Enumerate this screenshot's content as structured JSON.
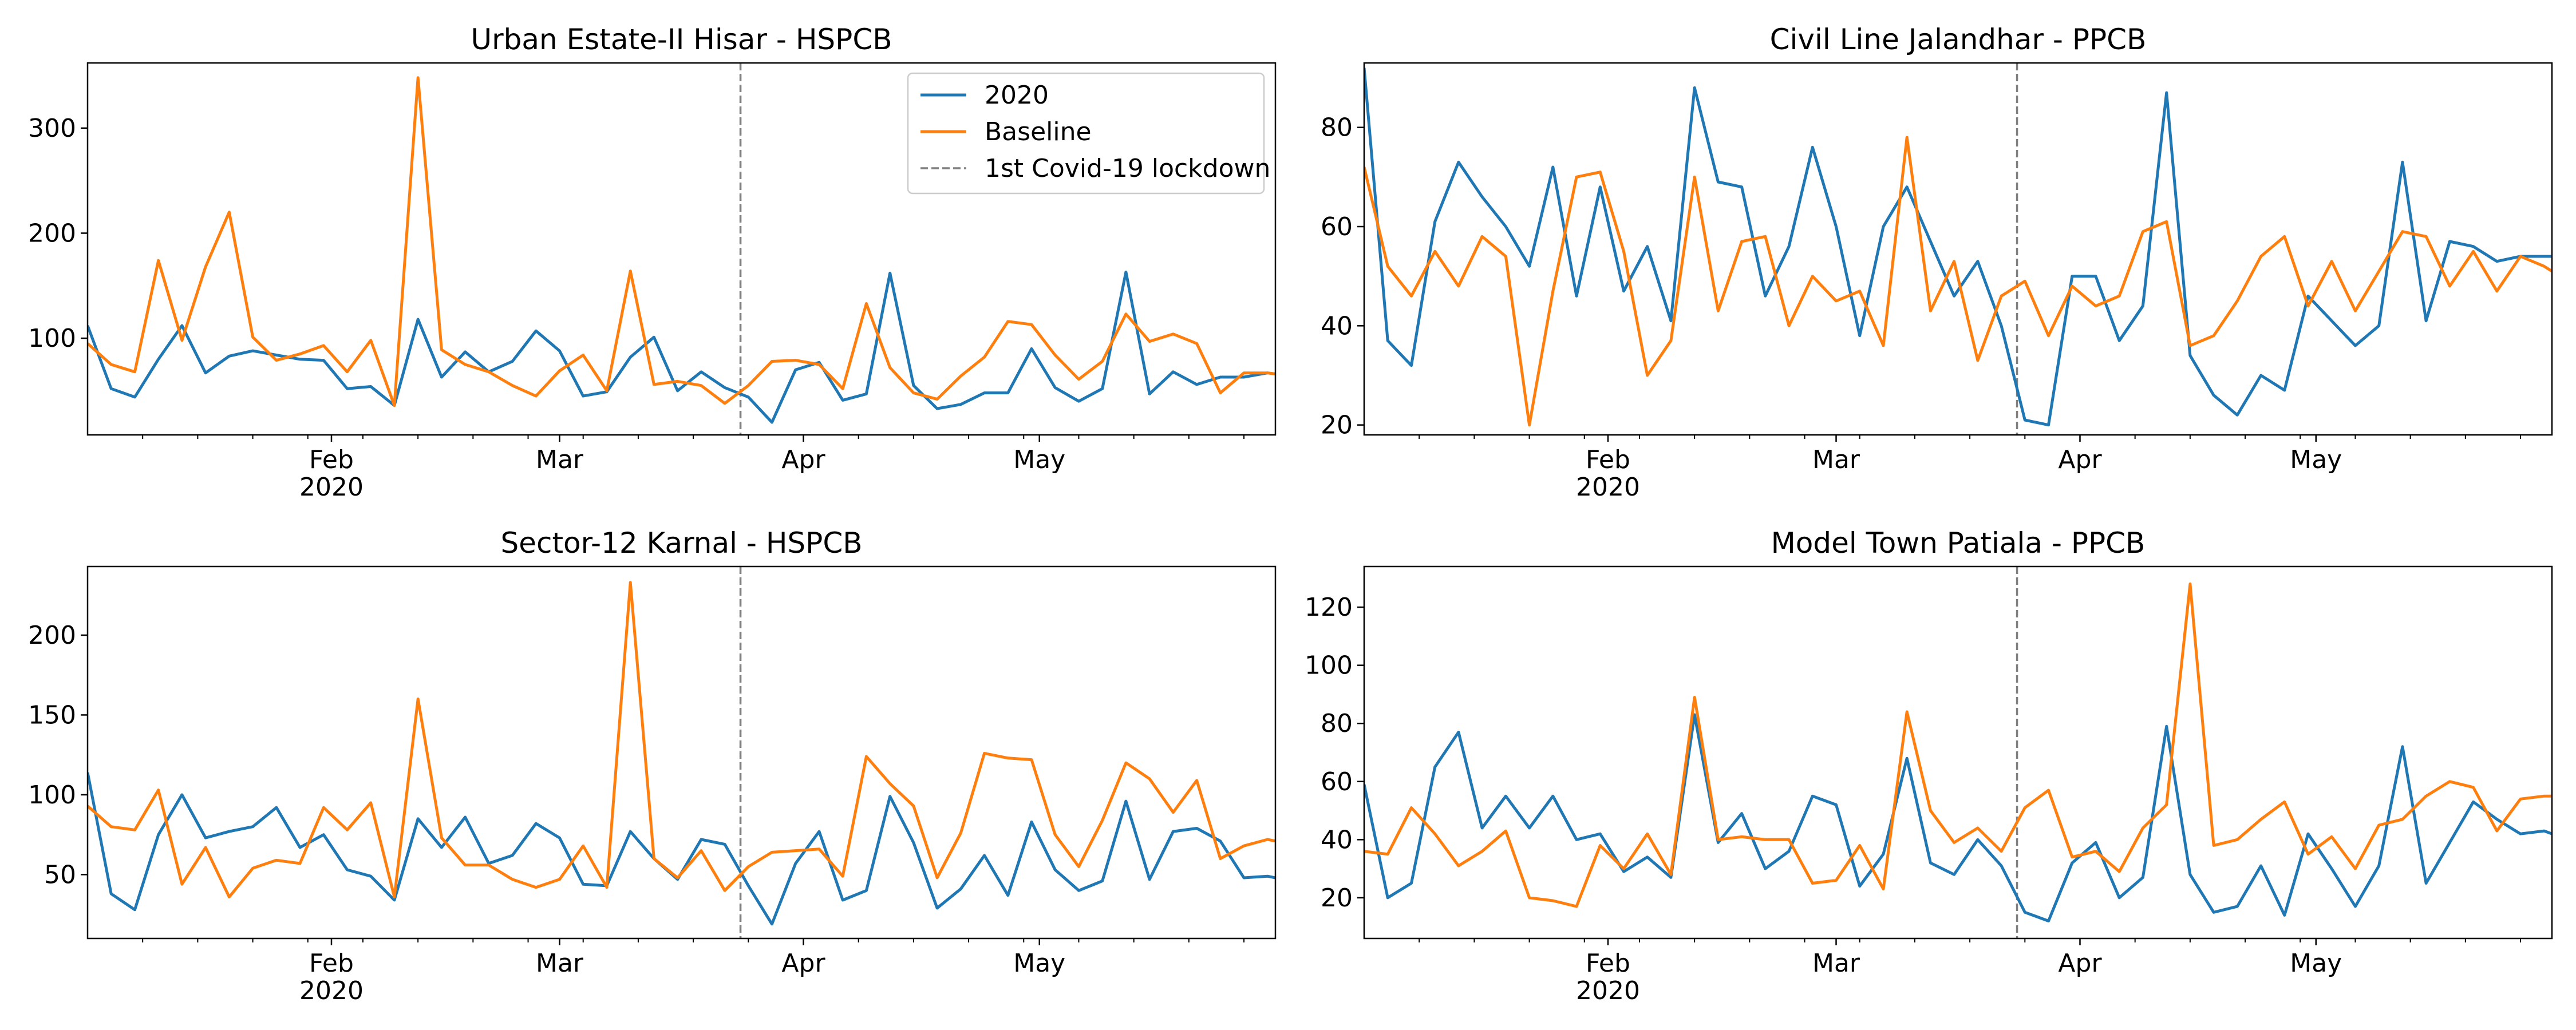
{
  "figure": {
    "background": "#ffffff"
  },
  "styles": {
    "line_2020_color": "#1f77b4",
    "line_baseline_color": "#ff7f0e",
    "lockdown_color": "#808080"
  },
  "lockdown": {
    "date": "2020-03-24",
    "label": "1st Covid-19 lockdown"
  },
  "legend": {
    "entries": [
      {
        "label": "2020",
        "key": "line_2020_color",
        "dashed": false
      },
      {
        "label": "Baseline",
        "key": "line_baseline_color",
        "dashed": false
      },
      {
        "label": "1st Covid-19 lockdown",
        "key": "lockdown_color",
        "dashed": true
      }
    ],
    "placement": "upper-right of first panel"
  },
  "x_axis": {
    "range": [
      "2020-01-01",
      "2020-05-31"
    ],
    "major_ticks": [
      {
        "date": "2020-02-01",
        "label": "Feb",
        "sublabel": "2020"
      },
      {
        "date": "2020-03-01",
        "label": "Mar",
        "sublabel": ""
      },
      {
        "date": "2020-04-01",
        "label": "Apr",
        "sublabel": ""
      },
      {
        "date": "2020-05-01",
        "label": "May",
        "sublabel": ""
      }
    ],
    "minor_tick_dates": [
      "2020-01-08",
      "2020-01-15",
      "2020-01-22",
      "2020-01-29",
      "2020-02-05",
      "2020-02-12",
      "2020-02-19",
      "2020-02-26",
      "2020-03-04",
      "2020-03-11",
      "2020-03-18",
      "2020-03-25",
      "2020-04-08",
      "2020-04-15",
      "2020-04-22",
      "2020-04-29",
      "2020-05-06",
      "2020-05-13",
      "2020-05-20",
      "2020-05-27"
    ]
  },
  "chart_data": [
    {
      "type": "line",
      "title": "Urban Estate-II  Hisar - HSPCB",
      "ylim": [
        8,
        362
      ],
      "yticks": [
        100,
        200,
        300
      ],
      "xlabel": "",
      "ylabel": "",
      "grid": false,
      "x": [
        "2020-01-01",
        "2020-01-04",
        "2020-01-07",
        "2020-01-10",
        "2020-01-13",
        "2020-01-16",
        "2020-01-19",
        "2020-01-22",
        "2020-01-25",
        "2020-01-28",
        "2020-01-31",
        "2020-02-03",
        "2020-02-06",
        "2020-02-09",
        "2020-02-12",
        "2020-02-15",
        "2020-02-18",
        "2020-02-21",
        "2020-02-24",
        "2020-02-27",
        "2020-03-01",
        "2020-03-04",
        "2020-03-07",
        "2020-03-10",
        "2020-03-13",
        "2020-03-16",
        "2020-03-19",
        "2020-03-22",
        "2020-03-25",
        "2020-03-28",
        "2020-03-31",
        "2020-04-03",
        "2020-04-06",
        "2020-04-09",
        "2020-04-12",
        "2020-04-15",
        "2020-04-18",
        "2020-04-21",
        "2020-04-24",
        "2020-04-27",
        "2020-04-30",
        "2020-05-03",
        "2020-05-06",
        "2020-05-09",
        "2020-05-12",
        "2020-05-15",
        "2020-05-18",
        "2020-05-21",
        "2020-05-24",
        "2020-05-27",
        "2020-05-30",
        "2020-05-31"
      ],
      "series": [
        {
          "name": "2020",
          "color_key": "line_2020_color",
          "values": [
            112,
            52,
            44,
            80,
            112,
            67,
            83,
            88,
            84,
            80,
            79,
            52,
            54,
            36,
            118,
            63,
            87,
            68,
            78,
            107,
            88,
            45,
            49,
            82,
            101,
            50,
            68,
            53,
            44,
            20,
            70,
            77,
            41,
            47,
            162,
            55,
            33,
            37,
            48,
            48,
            90,
            53,
            40,
            52,
            163,
            47,
            68,
            56,
            63,
            63,
            67,
            66
          ]
        },
        {
          "name": "Baseline",
          "color_key": "line_baseline_color",
          "values": [
            95,
            75,
            68,
            174,
            98,
            168,
            220,
            101,
            79,
            85,
            93,
            68,
            98,
            36,
            348,
            89,
            75,
            68,
            55,
            45,
            69,
            84,
            50,
            164,
            56,
            59,
            55,
            38,
            55,
            78,
            79,
            75,
            52,
            133,
            72,
            48,
            42,
            64,
            82,
            116,
            113,
            84,
            61,
            78,
            123,
            97,
            104,
            95,
            48,
            67,
            67,
            66
          ]
        }
      ]
    },
    {
      "type": "line",
      "title": "Civil Line  Jalandhar - PPCB",
      "ylim": [
        18,
        93
      ],
      "yticks": [
        20,
        40,
        60,
        80
      ],
      "xlabel": "",
      "ylabel": "",
      "grid": false,
      "x": [
        "2020-01-01",
        "2020-01-04",
        "2020-01-07",
        "2020-01-10",
        "2020-01-13",
        "2020-01-16",
        "2020-01-19",
        "2020-01-22",
        "2020-01-25",
        "2020-01-28",
        "2020-01-31",
        "2020-02-03",
        "2020-02-06",
        "2020-02-09",
        "2020-02-12",
        "2020-02-15",
        "2020-02-18",
        "2020-02-21",
        "2020-02-24",
        "2020-02-27",
        "2020-03-01",
        "2020-03-04",
        "2020-03-07",
        "2020-03-10",
        "2020-03-13",
        "2020-03-16",
        "2020-03-19",
        "2020-03-22",
        "2020-03-25",
        "2020-03-28",
        "2020-03-31",
        "2020-04-03",
        "2020-04-06",
        "2020-04-09",
        "2020-04-12",
        "2020-04-15",
        "2020-04-18",
        "2020-04-21",
        "2020-04-24",
        "2020-04-27",
        "2020-04-30",
        "2020-05-03",
        "2020-05-06",
        "2020-05-09",
        "2020-05-12",
        "2020-05-15",
        "2020-05-18",
        "2020-05-21",
        "2020-05-24",
        "2020-05-27",
        "2020-05-30",
        "2020-05-31"
      ],
      "series": [
        {
          "name": "2020",
          "color_key": "line_2020_color",
          "values": [
            92,
            37,
            32,
            61,
            73,
            66,
            60,
            52,
            72,
            46,
            68,
            47,
            56,
            41,
            88,
            69,
            68,
            46,
            56,
            76,
            60,
            38,
            60,
            68,
            57,
            46,
            53,
            40,
            21,
            20,
            50,
            50,
            37,
            44,
            87,
            34,
            26,
            22,
            30,
            27,
            46,
            41,
            36,
            40,
            73,
            41,
            57,
            56,
            53,
            54,
            54,
            54
          ]
        },
        {
          "name": "Baseline",
          "color_key": "line_baseline_color",
          "values": [
            72,
            52,
            46,
            55,
            48,
            58,
            54,
            20,
            47,
            70,
            71,
            55,
            30,
            37,
            70,
            43,
            57,
            58,
            40,
            50,
            45,
            47,
            36,
            78,
            43,
            53,
            33,
            46,
            49,
            38,
            48,
            44,
            46,
            59,
            61,
            36,
            38,
            45,
            54,
            58,
            44,
            53,
            43,
            51,
            59,
            58,
            48,
            55,
            47,
            54,
            52,
            51
          ]
        }
      ]
    },
    {
      "type": "line",
      "title": "Sector-12  Karnal - HSPCB",
      "ylim": [
        10,
        243
      ],
      "yticks": [
        50,
        100,
        150,
        200
      ],
      "xlabel": "",
      "ylabel": "",
      "grid": false,
      "x": [
        "2020-01-01",
        "2020-01-04",
        "2020-01-07",
        "2020-01-10",
        "2020-01-13",
        "2020-01-16",
        "2020-01-19",
        "2020-01-22",
        "2020-01-25",
        "2020-01-28",
        "2020-01-31",
        "2020-02-03",
        "2020-02-06",
        "2020-02-09",
        "2020-02-12",
        "2020-02-15",
        "2020-02-18",
        "2020-02-21",
        "2020-02-24",
        "2020-02-27",
        "2020-03-01",
        "2020-03-04",
        "2020-03-07",
        "2020-03-10",
        "2020-03-13",
        "2020-03-16",
        "2020-03-19",
        "2020-03-22",
        "2020-03-25",
        "2020-03-28",
        "2020-03-31",
        "2020-04-03",
        "2020-04-06",
        "2020-04-09",
        "2020-04-12",
        "2020-04-15",
        "2020-04-18",
        "2020-04-21",
        "2020-04-24",
        "2020-04-27",
        "2020-04-30",
        "2020-05-03",
        "2020-05-06",
        "2020-05-09",
        "2020-05-12",
        "2020-05-15",
        "2020-05-18",
        "2020-05-21",
        "2020-05-24",
        "2020-05-27",
        "2020-05-30",
        "2020-05-31"
      ],
      "series": [
        {
          "name": "2020",
          "color_key": "line_2020_color",
          "values": [
            114,
            38,
            28,
            75,
            100,
            73,
            77,
            80,
            92,
            67,
            75,
            53,
            49,
            34,
            85,
            67,
            86,
            57,
            62,
            82,
            73,
            44,
            43,
            77,
            60,
            47,
            72,
            69,
            43,
            19,
            57,
            77,
            34,
            40,
            99,
            70,
            29,
            41,
            62,
            37,
            83,
            53,
            40,
            46,
            96,
            47,
            77,
            79,
            71,
            48,
            49,
            48
          ]
        },
        {
          "name": "Baseline",
          "color_key": "line_baseline_color",
          "values": [
            93,
            80,
            78,
            103,
            44,
            67,
            36,
            54,
            59,
            57,
            92,
            78,
            95,
            36,
            160,
            73,
            56,
            56,
            47,
            42,
            47,
            68,
            42,
            233,
            60,
            48,
            65,
            40,
            55,
            64,
            65,
            66,
            49,
            124,
            107,
            93,
            48,
            76,
            126,
            123,
            122,
            75,
            55,
            84,
            120,
            110,
            89,
            109,
            60,
            68,
            72,
            71
          ]
        }
      ]
    },
    {
      "type": "line",
      "title": "Model Town  Patiala - PPCB",
      "ylim": [
        6,
        134
      ],
      "yticks": [
        20,
        40,
        60,
        80,
        100,
        120
      ],
      "xlabel": "",
      "ylabel": "",
      "grid": false,
      "x": [
        "2020-01-01",
        "2020-01-04",
        "2020-01-07",
        "2020-01-10",
        "2020-01-13",
        "2020-01-16",
        "2020-01-19",
        "2020-01-22",
        "2020-01-25",
        "2020-01-28",
        "2020-01-31",
        "2020-02-03",
        "2020-02-06",
        "2020-02-09",
        "2020-02-12",
        "2020-02-15",
        "2020-02-18",
        "2020-02-21",
        "2020-02-24",
        "2020-02-27",
        "2020-03-01",
        "2020-03-04",
        "2020-03-07",
        "2020-03-10",
        "2020-03-13",
        "2020-03-16",
        "2020-03-19",
        "2020-03-22",
        "2020-03-25",
        "2020-03-28",
        "2020-03-31",
        "2020-04-03",
        "2020-04-06",
        "2020-04-09",
        "2020-04-12",
        "2020-04-15",
        "2020-04-18",
        "2020-04-21",
        "2020-04-24",
        "2020-04-27",
        "2020-04-30",
        "2020-05-03",
        "2020-05-06",
        "2020-05-09",
        "2020-05-12",
        "2020-05-15",
        "2020-05-18",
        "2020-05-21",
        "2020-05-24",
        "2020-05-27",
        "2020-05-30",
        "2020-05-31"
      ],
      "series": [
        {
          "name": "2020",
          "color_key": "line_2020_color",
          "values": [
            59,
            20,
            25,
            65,
            77,
            44,
            55,
            44,
            55,
            40,
            42,
            29,
            34,
            27,
            83,
            39,
            49,
            30,
            36,
            55,
            52,
            24,
            35,
            68,
            32,
            28,
            40,
            31,
            15,
            12,
            32,
            39,
            20,
            27,
            79,
            28,
            15,
            17,
            31,
            14,
            42,
            30,
            17,
            31,
            72,
            25,
            39,
            53,
            47,
            42,
            43,
            42
          ]
        },
        {
          "name": "Baseline",
          "color_key": "line_baseline_color",
          "values": [
            36,
            35,
            51,
            42,
            31,
            36,
            43,
            20,
            19,
            17,
            38,
            30,
            42,
            28,
            89,
            40,
            41,
            40,
            40,
            25,
            26,
            38,
            23,
            84,
            50,
            39,
            44,
            36,
            51,
            57,
            34,
            36,
            29,
            44,
            52,
            128,
            38,
            40,
            47,
            53,
            35,
            41,
            30,
            45,
            47,
            55,
            60,
            58,
            43,
            54,
            55,
            55
          ]
        }
      ]
    }
  ]
}
